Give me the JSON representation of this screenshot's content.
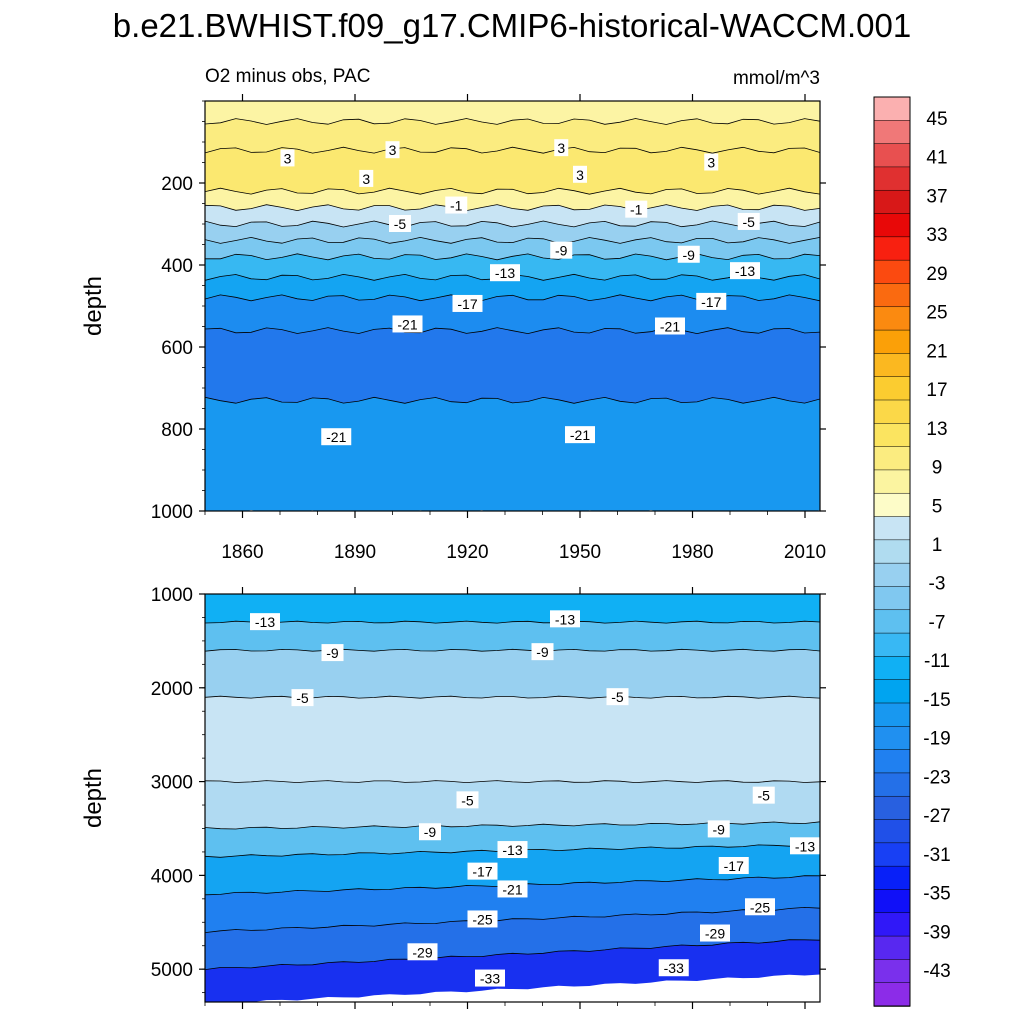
{
  "chart_data": {
    "type": "heatmap",
    "title": "b.e21.BWHIST.f09_g17.CMIP6-historical-WACCM.001",
    "subtitle_left": "O2 minus obs, PAC",
    "units": "mmol/m^3",
    "colorbar": {
      "labels": [
        "45",
        "41",
        "37",
        "33",
        "29",
        "25",
        "21",
        "17",
        "13",
        "9",
        "5",
        "1",
        "-3",
        "-7",
        "-11",
        "-15",
        "-19",
        "-23",
        "-27",
        "-31",
        "-35",
        "-39",
        "-43"
      ],
      "colors": [
        "#fbb0b0",
        "#f07878",
        "#e85050",
        "#e03030",
        "#d81818",
        "#e80808",
        "#f82010",
        "#fb4a10",
        "#fa6a10",
        "#fb8a10",
        "#fba008",
        "#fbb820",
        "#fbcc30",
        "#fbd848",
        "#fbe460",
        "#fbec80",
        "#fbf4a0",
        "#fdfcc8",
        "#c8e4f4",
        "#b0dcf0",
        "#98d0f0",
        "#80c8f0",
        "#5ec0f0",
        "#38b8f4",
        "#10b0f4",
        "#00a4f0",
        "#1898f0",
        "#2090f0",
        "#2080f0",
        "#2470e8",
        "#2860e0",
        "#2050e8",
        "#1840f4",
        "#0820f8",
        "#1010f8",
        "#3018f8",
        "#5828f0",
        "#7a30ec",
        "#8c2ce8"
      ]
    },
    "panels": [
      {
        "name": "upper",
        "xlabel": "",
        "ylabel": "depth",
        "xlim": [
          1850,
          2014
        ],
        "ylim": [
          1000,
          0
        ],
        "xticks": [
          "1860",
          "1890",
          "1920",
          "1950",
          "1980",
          "2010"
        ],
        "xtick_values": [
          1860,
          1890,
          1920,
          1950,
          1980,
          2010
        ],
        "yticks": [
          "200",
          "400",
          "600",
          "800",
          "1000"
        ],
        "ytick_values": [
          200,
          400,
          600,
          800,
          1000
        ],
        "bands": [
          {
            "top": 0,
            "bottom": 50,
            "value": 3
          },
          {
            "top": 50,
            "bottom": 120,
            "value": 5
          },
          {
            "top": 120,
            "bottom": 220,
            "value": 7
          },
          {
            "top": 220,
            "bottom": 260,
            "value": 3
          },
          {
            "top": 260,
            "bottom": 300,
            "value": -3
          },
          {
            "top": 300,
            "bottom": 340,
            "value": -7
          },
          {
            "top": 340,
            "bottom": 380,
            "value": -9
          },
          {
            "top": 380,
            "bottom": 430,
            "value": -13
          },
          {
            "top": 430,
            "bottom": 480,
            "value": -17
          },
          {
            "top": 480,
            "bottom": 560,
            "value": -21
          },
          {
            "top": 560,
            "bottom": 730,
            "value": -25
          },
          {
            "top": 730,
            "bottom": 1000,
            "value": -19
          }
        ],
        "contour_labels": [
          {
            "x": 1872,
            "y": 140,
            "text": "3"
          },
          {
            "x": 1900,
            "y": 120,
            "text": "3"
          },
          {
            "x": 1945,
            "y": 115,
            "text": "3"
          },
          {
            "x": 1985,
            "y": 150,
            "text": "3"
          },
          {
            "x": 1893,
            "y": 190,
            "text": "3"
          },
          {
            "x": 1950,
            "y": 180,
            "text": "3"
          },
          {
            "x": 1917,
            "y": 255,
            "text": "-1"
          },
          {
            "x": 1965,
            "y": 265,
            "text": "-1"
          },
          {
            "x": 1902,
            "y": 300,
            "text": "-5"
          },
          {
            "x": 1995,
            "y": 295,
            "text": "-5"
          },
          {
            "x": 1945,
            "y": 365,
            "text": "-9"
          },
          {
            "x": 1979,
            "y": 375,
            "text": "-9"
          },
          {
            "x": 1930,
            "y": 420,
            "text": "-13"
          },
          {
            "x": 1994,
            "y": 415,
            "text": "-13"
          },
          {
            "x": 1920,
            "y": 495,
            "text": "-17"
          },
          {
            "x": 1985,
            "y": 490,
            "text": "-17"
          },
          {
            "x": 1904,
            "y": 545,
            "text": "-21"
          },
          {
            "x": 1974,
            "y": 550,
            "text": "-21"
          },
          {
            "x": 1885,
            "y": 820,
            "text": "-21"
          },
          {
            "x": 1950,
            "y": 815,
            "text": "-21"
          }
        ]
      },
      {
        "name": "lower",
        "xlabel": "",
        "ylabel": "depth",
        "xlim": [
          1850,
          2014
        ],
        "ylim": [
          5350,
          1000
        ],
        "xticks": [],
        "xtick_values": [],
        "yticks": [
          "1000",
          "2000",
          "3000",
          "4000",
          "5000"
        ],
        "ytick_values": [
          1000,
          2000,
          3000,
          4000,
          5000
        ],
        "bands": [
          {
            "top": 1000,
            "bottom": 1300,
            "value": -15
          },
          {
            "top": 1300,
            "bottom": 1600,
            "value": -11
          },
          {
            "top": 1600,
            "bottom": 2100,
            "value": -7
          },
          {
            "top": 2100,
            "bottom": 3000,
            "value": -3
          },
          {
            "top": 3000,
            "bottom": 3500,
            "value": -5
          },
          {
            "top": 3500,
            "bottom": 3800,
            "value": -11
          },
          {
            "top": 3800,
            "bottom": 4200,
            "value": -17
          },
          {
            "top": 4200,
            "bottom": 4600,
            "value": -23
          },
          {
            "top": 4600,
            "bottom": 5000,
            "value": -27
          },
          {
            "top": 5000,
            "bottom": 5350,
            "value": -33
          }
        ],
        "contour_labels": [
          {
            "x": 1866,
            "y": 1300,
            "text": "-13"
          },
          {
            "x": 1946,
            "y": 1270,
            "text": "-13"
          },
          {
            "x": 1884,
            "y": 1630,
            "text": "-9"
          },
          {
            "x": 1940,
            "y": 1620,
            "text": "-9"
          },
          {
            "x": 1876,
            "y": 2110,
            "text": "-5"
          },
          {
            "x": 1960,
            "y": 2100,
            "text": "-5"
          },
          {
            "x": 1920,
            "y": 3200,
            "text": "-5"
          },
          {
            "x": 1999,
            "y": 3150,
            "text": "-5"
          },
          {
            "x": 1910,
            "y": 3540,
            "text": "-9"
          },
          {
            "x": 1987,
            "y": 3510,
            "text": "-9"
          },
          {
            "x": 1932,
            "y": 3730,
            "text": "-13"
          },
          {
            "x": 2010,
            "y": 3690,
            "text": "-13"
          },
          {
            "x": 1924,
            "y": 3960,
            "text": "-17"
          },
          {
            "x": 1991,
            "y": 3900,
            "text": "-17"
          },
          {
            "x": 1932,
            "y": 4150,
            "text": "-21"
          },
          {
            "x": 1924,
            "y": 4470,
            "text": "-25"
          },
          {
            "x": 1998,
            "y": 4340,
            "text": "-25"
          },
          {
            "x": 1908,
            "y": 4820,
            "text": "-29"
          },
          {
            "x": 1986,
            "y": 4620,
            "text": "-29"
          },
          {
            "x": 1926,
            "y": 5100,
            "text": "-33"
          },
          {
            "x": 1975,
            "y": 4990,
            "text": "-33"
          }
        ]
      }
    ]
  }
}
